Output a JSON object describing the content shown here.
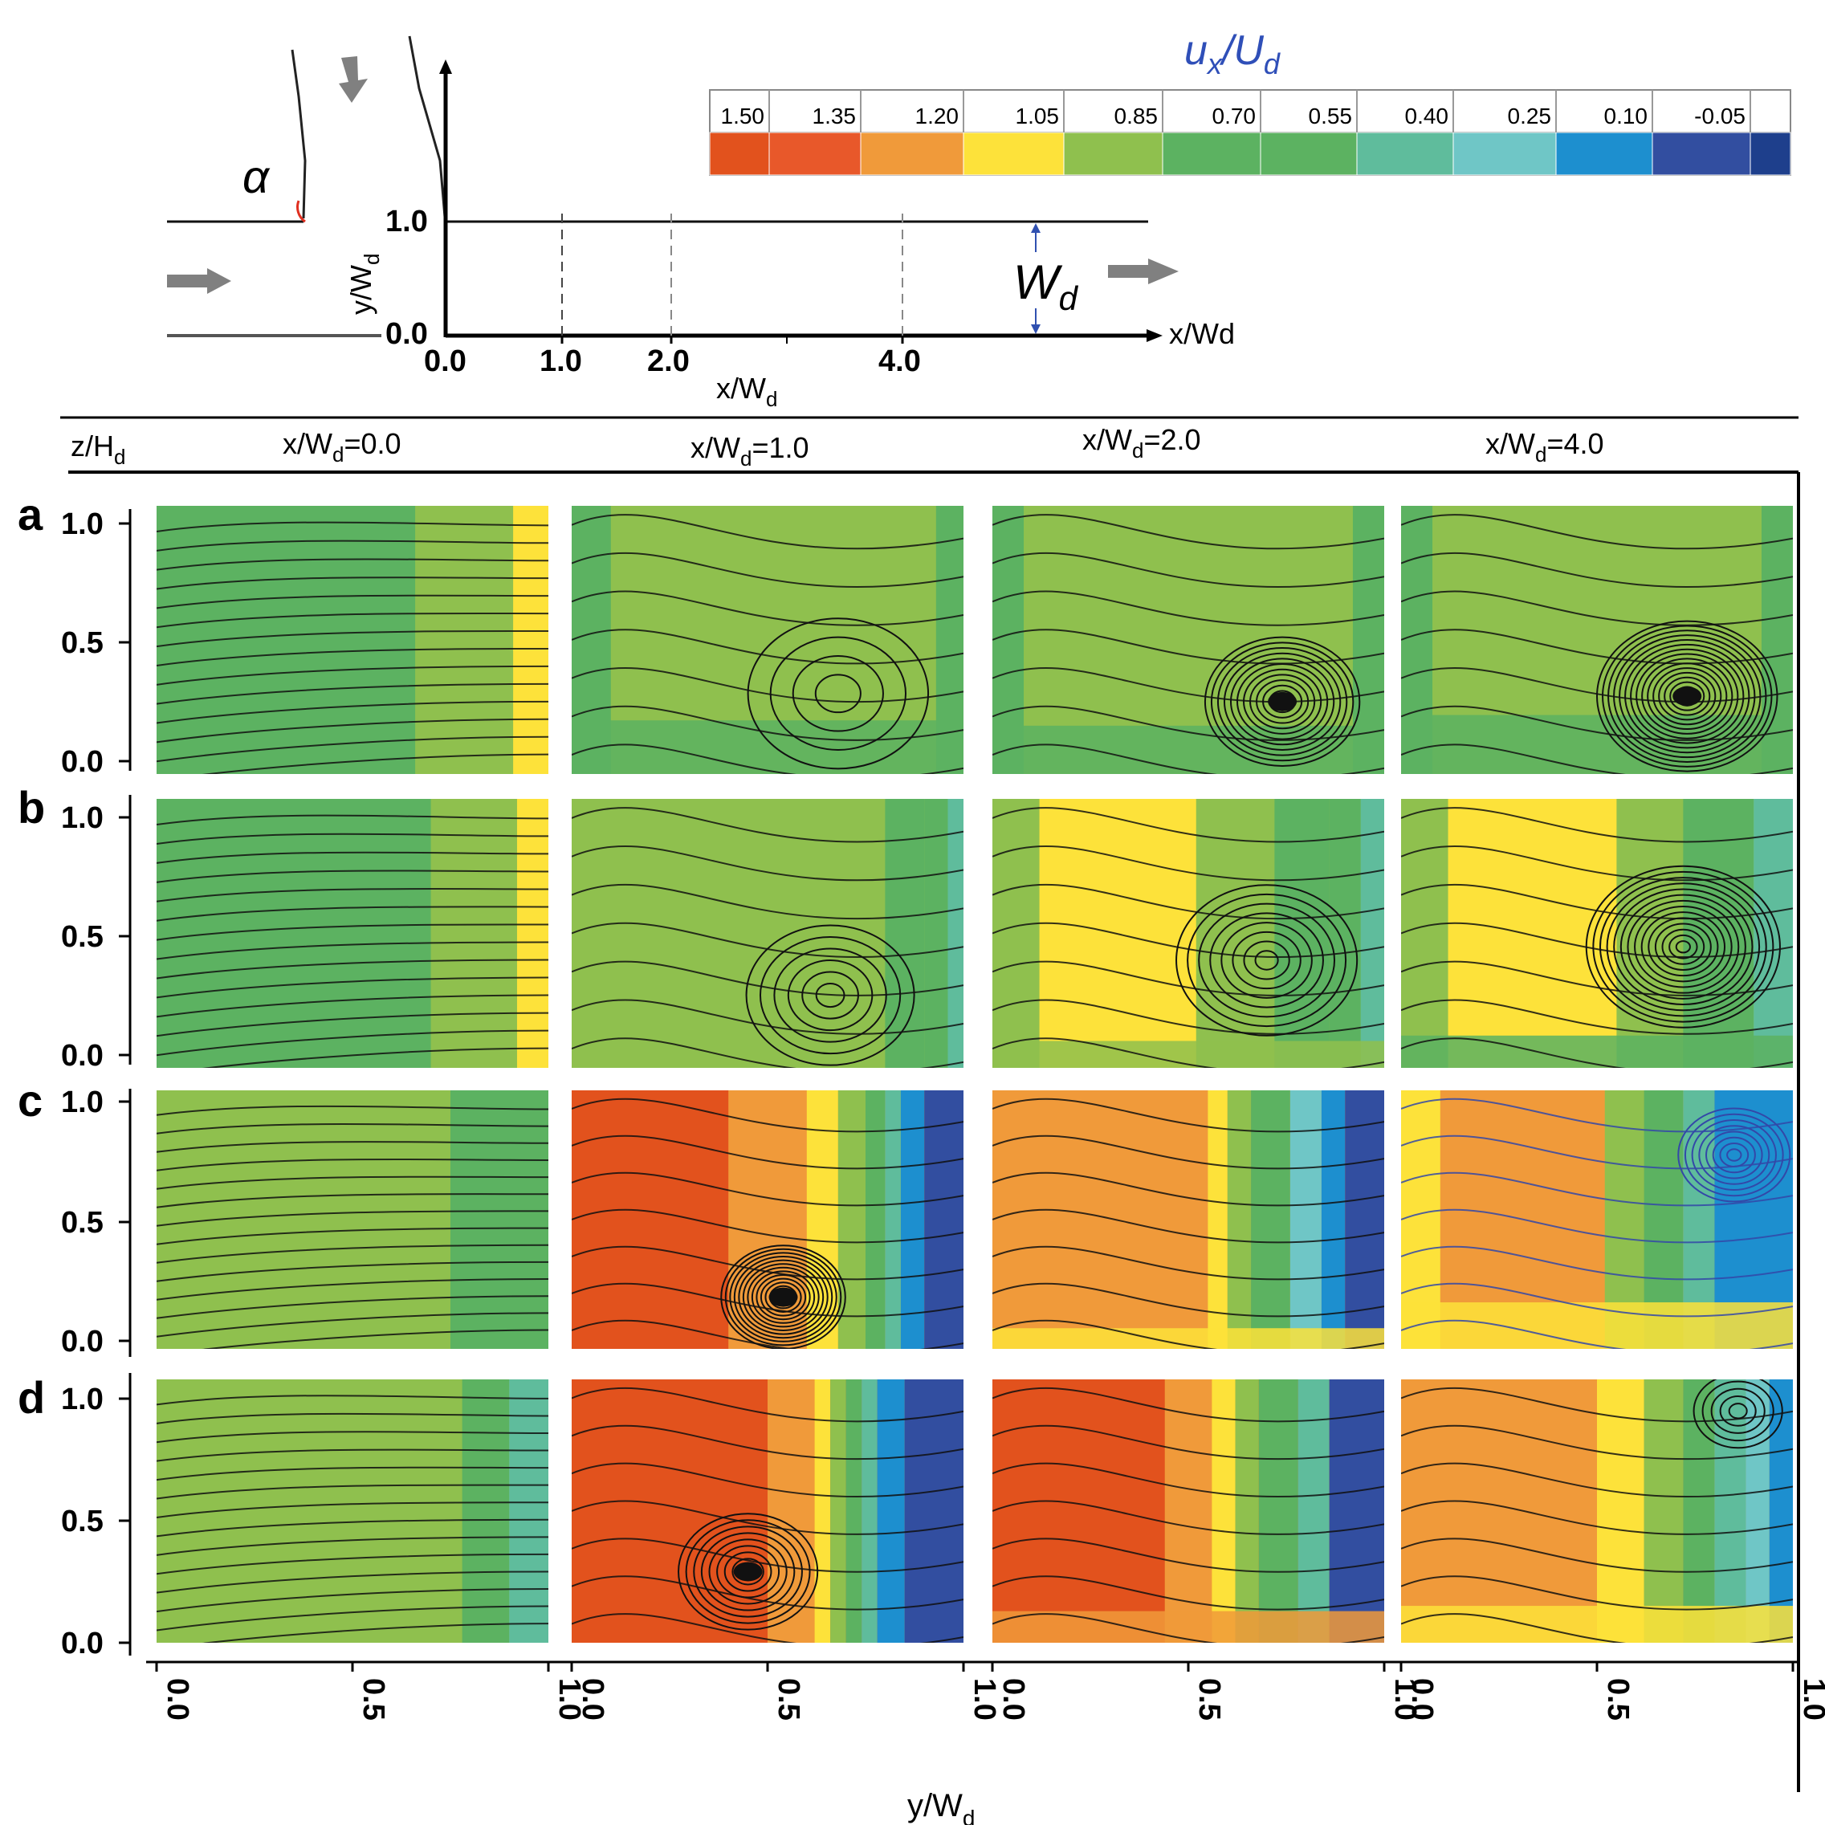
{
  "figure": {
    "schematic": {
      "alpha_label": "α",
      "y_axis_label": "y/W",
      "y_axis_sub": "d",
      "x_axis_right_label": "x/Wd",
      "x_axis_bottom_label": "x/W",
      "x_axis_bottom_sub": "d",
      "wd_label": "W",
      "wd_sub": "d",
      "y_ticks": [
        "1.0",
        "0.0"
      ],
      "x_ticks": [
        "0.0",
        "1.0",
        "2.0",
        "4.0"
      ]
    },
    "colorbar": {
      "title_main": "u",
      "title_sub": "x",
      "title_den": "/U",
      "title_den_sub": "d",
      "levels": [
        "1.50",
        "1.35",
        "1.20",
        "1.05",
        "0.85",
        "0.70",
        "0.55",
        "0.40",
        "0.25",
        "0.10",
        "-0.05"
      ],
      "colors": [
        "#e2521d",
        "#e8582a",
        "#f09a3a",
        "#fde23a",
        "#8fc04e",
        "#5cb261",
        "#5cb261",
        "#5fbc9c",
        "#6fc6c6",
        "#1d8fcf",
        "#324ea0",
        "#1e3f8c"
      ]
    },
    "header": {
      "row_axis": "z/H",
      "row_axis_sub": "d",
      "columns": [
        {
          "pre": "x/W",
          "sub": "d",
          "post": "=0.0"
        },
        {
          "pre": "x/W",
          "sub": "d",
          "post": "=1.0"
        },
        {
          "pre": "x/W",
          "sub": "d",
          "post": "=2.0"
        },
        {
          "pre": "x/W",
          "sub": "d",
          "post": "=4.0"
        }
      ]
    },
    "rows": [
      {
        "label": "a",
        "ticks": [
          "1.0",
          "0.5",
          "0.0"
        ]
      },
      {
        "label": "b",
        "ticks": [
          "1.0",
          "0.5",
          "0.0"
        ]
      },
      {
        "label": "c",
        "ticks": [
          "1.0",
          "0.5",
          "0.0"
        ]
      },
      {
        "label": "d",
        "ticks": [
          "1.0",
          "0.5",
          "0.0"
        ]
      }
    ],
    "bottom_ticks": [
      "0.0",
      "0.5",
      "1.0"
    ],
    "bottom_axis_label": "y/W",
    "bottom_axis_sub": "d"
  }
}
